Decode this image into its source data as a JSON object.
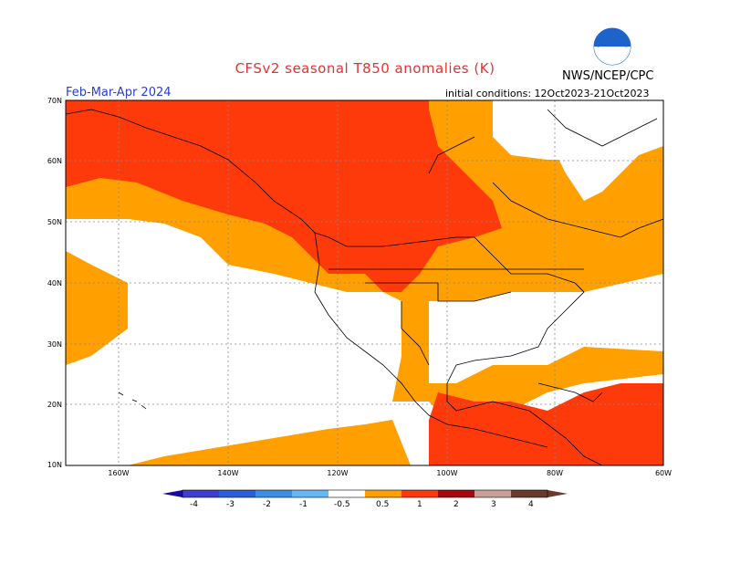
{
  "header": {
    "title": "CFSv2 seasonal T850 anomalies (K)",
    "agency": "NWS/NCEP/CPC",
    "season": "Feb-Mar-Apr 2024",
    "initial_conditions": "initial conditions: 12Oct2023-21Oct2023"
  },
  "map": {
    "lat_labels": [
      "70N",
      "60N",
      "50N",
      "40N",
      "30N",
      "20N",
      "10N"
    ],
    "lon_labels": [
      "160W",
      "140W",
      "120W",
      "100W",
      "80W",
      "60W"
    ],
    "colors": {
      "anom_0_5_1": "#ff9f00",
      "anom_1_2": "#ff3a0a",
      "neutral": "#ffffff",
      "coast": "#000000",
      "grid": "#888888"
    }
  },
  "colorbar": {
    "tick_labels": [
      "-4",
      "-3",
      "-2",
      "-1",
      "-0.5",
      "0.5",
      "1",
      "2",
      "3",
      "4"
    ],
    "colors": [
      "#1a0a9e",
      "#3e3ecf",
      "#2a5fd8",
      "#3a8ee6",
      "#63b8f5",
      "#ffffff",
      "#ff9f00",
      "#ff3a0a",
      "#a8060e",
      "#c8a098",
      "#6a3a2e"
    ]
  }
}
